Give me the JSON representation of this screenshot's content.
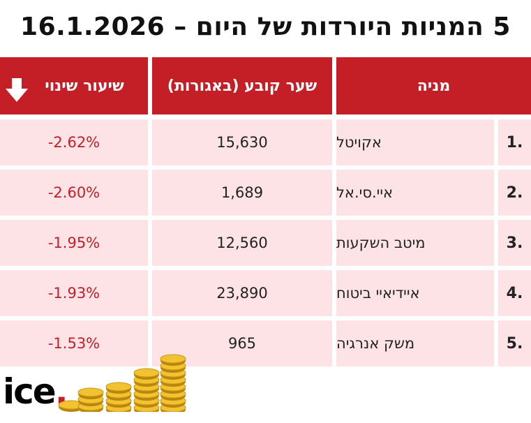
{
  "title": "5 המניות היורדות של היום – 16.1.2026",
  "colors": {
    "header_bg": "#c41e27",
    "row_bg": "#fde3e6",
    "negative": "#c41e27"
  },
  "table": {
    "headers": {
      "stock": "מניה",
      "price": "שער קובע (באגורות)",
      "change": "שיעור שינוי"
    },
    "rows": [
      {
        "rank": "1.",
        "name": "אקויטל",
        "price": "15,630",
        "change": "-2.62%"
      },
      {
        "rank": "2.",
        "name": "איי.סי.אל",
        "price": "1,689",
        "change": "-2.60%"
      },
      {
        "rank": "3.",
        "name": "מיטב השקעות",
        "price": "12,560",
        "change": "-1.95%"
      },
      {
        "rank": "4.",
        "name": "איידיאיי ביטוח",
        "price": "23,890",
        "change": "-1.93%"
      },
      {
        "rank": "5.",
        "name": "משק אנרגיה",
        "price": "965",
        "change": "-1.53%"
      }
    ]
  },
  "logo": {
    "text": "ice",
    "dot": "."
  },
  "icons": {
    "sort": "arrow-down-icon",
    "decoration": "gold-coins-icon"
  }
}
